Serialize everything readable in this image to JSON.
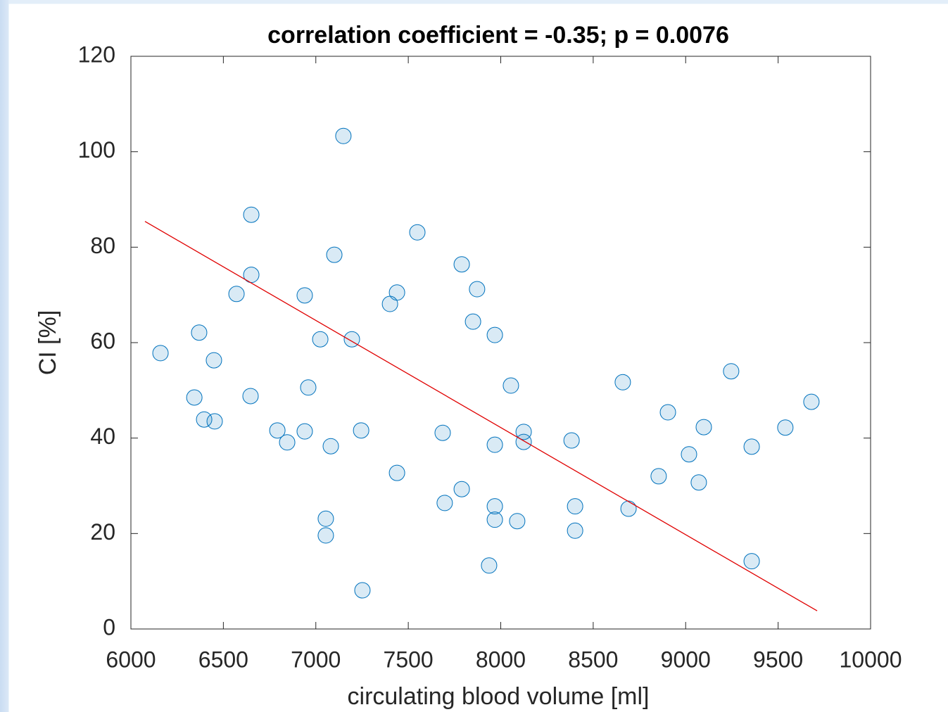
{
  "chart_data": {
    "type": "scatter",
    "title": "correlation coefficient = -0.35; p = 0.0076",
    "x_label": "circulating blood volume [ml]",
    "y_label": "CI [%]",
    "x": [
      6160,
      6369,
      6343,
      6396,
      6453,
      6449,
      6651,
      6651,
      6571,
      6647,
      6792,
      6845,
      6940,
      6940,
      6959,
      7024,
      7081,
      7100,
      7149,
      7195,
      7054,
      7054,
      7245,
      7252,
      7401,
      7439,
      7439,
      7549,
      7686,
      7697,
      7789,
      7789,
      7872,
      7850,
      7968,
      7968,
      7968,
      7968,
      7937,
      8055,
      8089,
      8124,
      8124,
      8383,
      8402,
      8402,
      8660,
      8691,
      8854,
      8904,
      9018,
      9071,
      9098,
      9246,
      9357,
      9357,
      9539,
      9680
    ],
    "values": [
      57.8,
      62.1,
      48.5,
      43.9,
      43.5,
      56.3,
      86.8,
      74.2,
      70.2,
      48.8,
      41.6,
      39.1,
      69.9,
      41.4,
      50.6,
      60.7,
      38.3,
      78.4,
      103.3,
      60.7,
      23.1,
      19.6,
      41.6,
      8.1,
      68.1,
      70.5,
      32.7,
      83.1,
      41.1,
      26.4,
      76.4,
      29.3,
      71.2,
      64.4,
      61.6,
      38.6,
      25.7,
      22.9,
      13.3,
      51.0,
      22.6,
      41.3,
      39.2,
      39.5,
      25.7,
      20.6,
      51.7,
      25.2,
      32.0,
      45.4,
      36.6,
      30.7,
      42.3,
      54.0,
      38.2,
      14.2,
      42.2,
      47.6
    ],
    "color": "#0072bd",
    "fit": {
      "x": [
        6076,
        9711
      ],
      "values": [
        85.4,
        3.8
      ],
      "color": "#e00000"
    },
    "xlim": [
      6000,
      10000
    ],
    "xticks": [
      6000,
      6500,
      7000,
      7500,
      8000,
      8500,
      9000,
      9500,
      10000
    ],
    "ylim": [
      0,
      120
    ],
    "yticks": [
      0,
      20,
      40,
      60,
      80,
      100,
      120
    ]
  }
}
